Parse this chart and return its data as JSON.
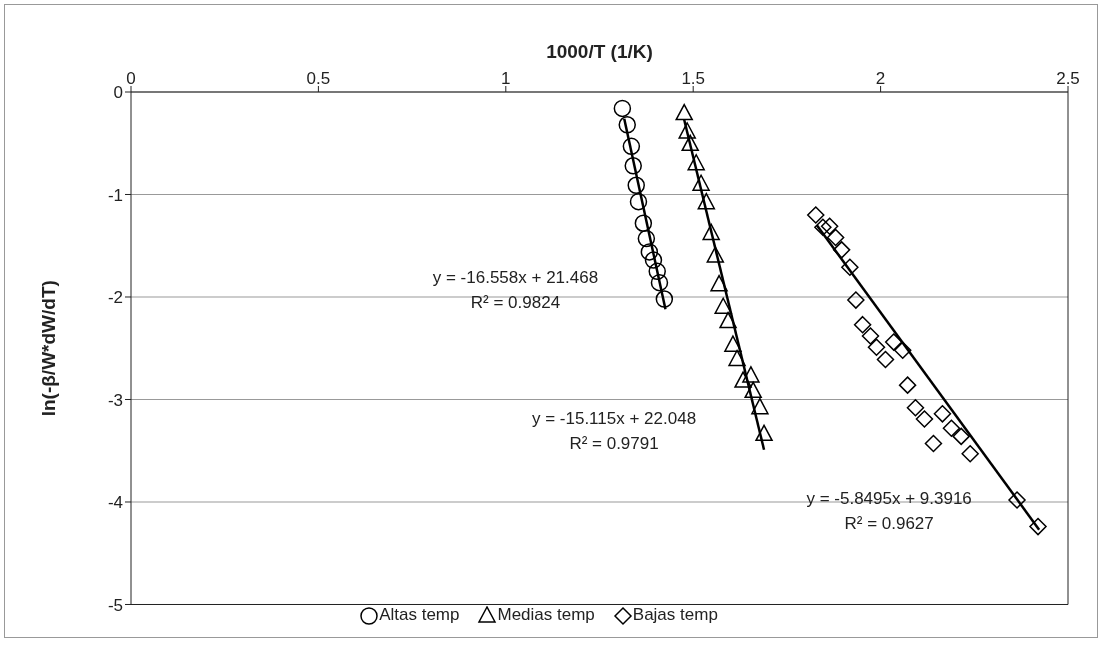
{
  "chart_data": {
    "type": "scatter",
    "xlabel": "1000/T (1/K)",
    "ylabel": "ln(-β/W*dW/dT)",
    "xlim": [
      0,
      2.5
    ],
    "xticks": [
      0,
      0.5,
      1,
      1.5,
      2,
      2.5
    ],
    "ylim": [
      -5,
      0
    ],
    "yticks": [
      0,
      -1,
      -2,
      -3,
      -4,
      -5
    ],
    "grid": "y",
    "legend": "bottom",
    "series": [
      {
        "name": "Altas temp",
        "marker": "circle",
        "color": "#000000",
        "x": [
          1.311,
          1.324,
          1.335,
          1.34,
          1.348,
          1.354,
          1.367,
          1.375,
          1.383,
          1.394,
          1.404,
          1.41,
          1.423
        ],
        "values": [
          -0.16,
          -0.32,
          -0.53,
          -0.72,
          -0.91,
          -1.07,
          -1.28,
          -1.43,
          -1.56,
          -1.64,
          -1.75,
          -1.86,
          -2.02
        ]
      },
      {
        "name": "Medias temp",
        "marker": "triangle",
        "color": "#000000",
        "x": [
          1.476,
          1.484,
          1.492,
          1.508,
          1.521,
          1.535,
          1.548,
          1.559,
          1.569,
          1.58,
          1.593,
          1.606,
          1.617,
          1.633,
          1.654,
          1.66,
          1.678,
          1.689
        ],
        "values": [
          -0.21,
          -0.39,
          -0.51,
          -0.7,
          -0.9,
          -1.08,
          -1.38,
          -1.6,
          -1.88,
          -2.1,
          -2.24,
          -2.47,
          -2.61,
          -2.82,
          -2.77,
          -2.92,
          -3.08,
          -3.34
        ]
      },
      {
        "name": "Bajas temp",
        "marker": "diamond",
        "color": "#000000",
        "x": [
          1.827,
          1.846,
          1.864,
          1.88,
          1.896,
          1.918,
          1.934,
          1.952,
          1.973,
          1.989,
          2.013,
          2.035,
          2.059,
          2.072,
          2.093,
          2.117,
          2.141,
          2.165,
          2.189,
          2.215,
          2.239,
          2.364,
          2.42
        ],
        "values": [
          -1.2,
          -1.32,
          -1.31,
          -1.42,
          -1.54,
          -1.71,
          -2.03,
          -2.27,
          -2.38,
          -2.49,
          -2.61,
          -2.44,
          -2.52,
          -2.86,
          -3.08,
          -3.19,
          -3.43,
          -3.14,
          -3.28,
          -3.36,
          -3.53,
          -3.98,
          -4.24
        ]
      },
      {
        "type": "line",
        "color": "#000000",
        "x": [
          1.316,
          1.426
        ],
        "values": [
          -0.26,
          -2.12
        ]
      },
      {
        "type": "line",
        "color": "#000000",
        "x": [
          1.476,
          1.689
        ],
        "values": [
          -0.27,
          -3.49
        ]
      },
      {
        "type": "line",
        "color": "#000000",
        "x": [
          1.83,
          2.423
        ],
        "values": [
          -1.3,
          -4.27
        ]
      }
    ],
    "annotations": [
      "y = -16.558x + 21.468",
      "R² = 0.9824",
      "y = -15.115x + 22.048",
      "R² = 0.9791",
      "y = -5.8495x + 9.3916",
      "R² = 0.9627"
    ]
  }
}
